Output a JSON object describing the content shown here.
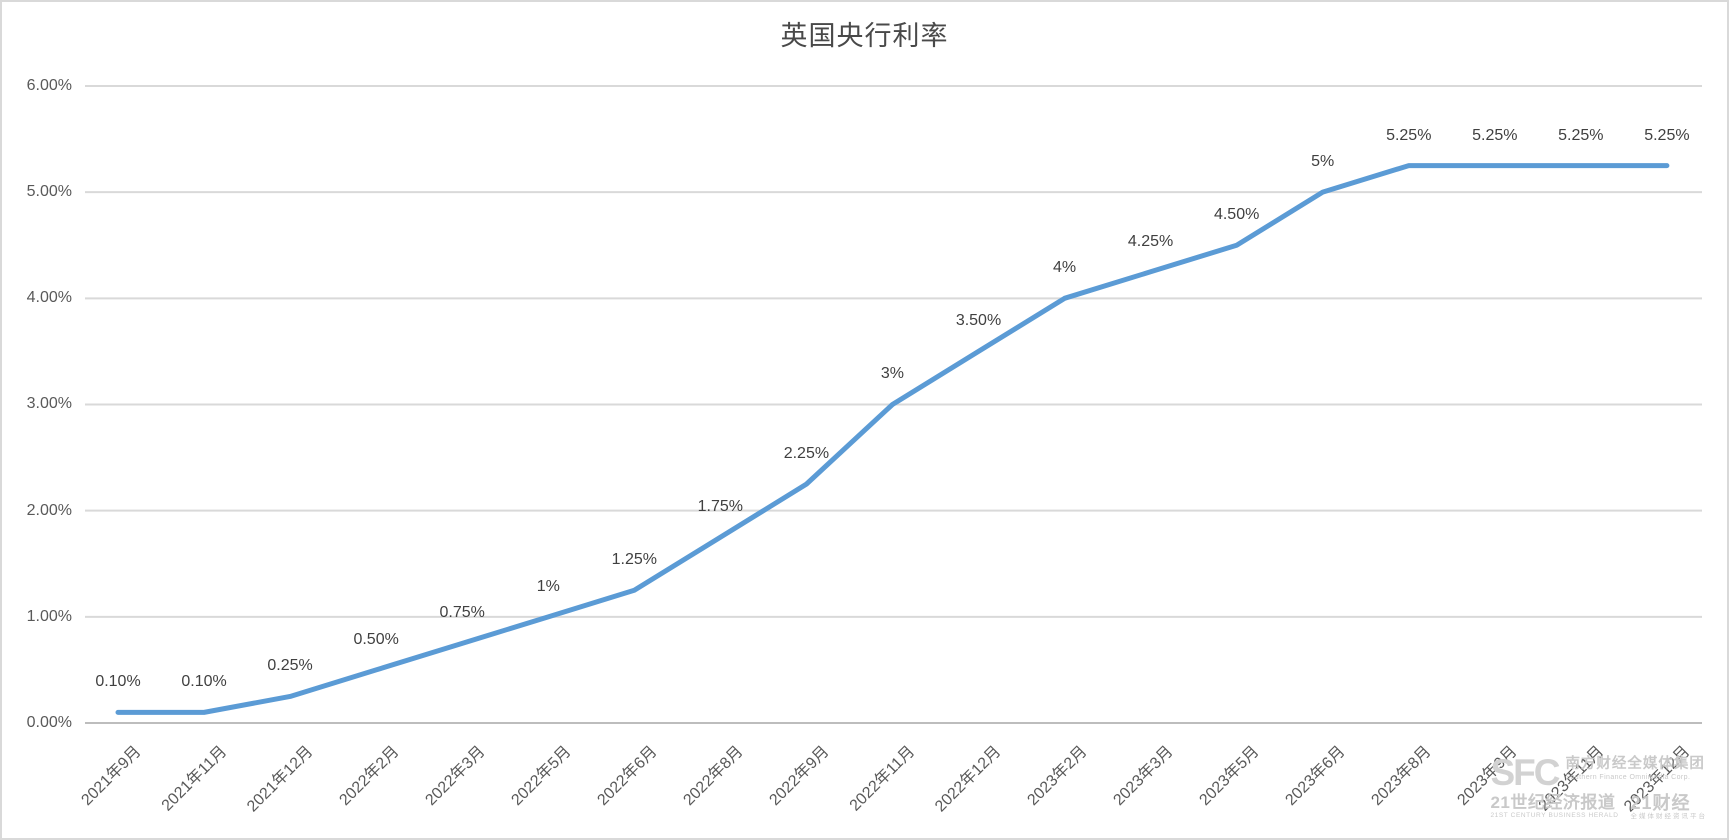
{
  "chart_data": {
    "type": "line",
    "title": "英国央行利率",
    "categories": [
      "2021年9月",
      "2021年11月",
      "2021年12月",
      "2022年2月",
      "2022年3月",
      "2022年5月",
      "2022年6月",
      "2022年8月",
      "2022年9月",
      "2022年11月",
      "2022年12月",
      "2023年2月",
      "2023年3月",
      "2023年5月",
      "2023年6月",
      "2023年8月",
      "2023年9月",
      "2023年11月",
      "2023年12月"
    ],
    "values": [
      0.1,
      0.1,
      0.25,
      0.5,
      0.75,
      1,
      1.25,
      1.75,
      2.25,
      3,
      3.5,
      4,
      4.25,
      4.5,
      5,
      5.25,
      5.25,
      5.25,
      5.25
    ],
    "data_labels": [
      "0.10%",
      "0.10%",
      "0.25%",
      "0.50%",
      "0.75%",
      "1%",
      "1.25%",
      "1.75%",
      "2.25%",
      "3%",
      "3.50%",
      "4%",
      "4.25%",
      "4.50%",
      "5%",
      "5.25%",
      "5.25%",
      "5.25%",
      "5.25%"
    ],
    "y_ticks": [
      "6.00%",
      "5.00%",
      "4.00%",
      "3.00%",
      "2.00%",
      "1.00%",
      "0.00%"
    ],
    "ylim": [
      0,
      6
    ],
    "grid": true,
    "legend": "none",
    "x_label_rotation": -45,
    "colors": {
      "line": "#5B9BD5",
      "gridline": "#D9D9D9",
      "zero_axis": "#BDBDBD",
      "data_label": "#404040",
      "tick_label": "#595959",
      "title": "#494949"
    }
  },
  "watermark": {
    "logo": "SFC",
    "org_cn": "南方财经全媒体集团",
    "org_en": "Southern Finance Omnimedia Corp.",
    "brand1_cn": "21世纪经济报道",
    "brand1_en": "21ST CENTURY BUSINESS HERALD",
    "brand2_cn": "21财经",
    "brand2_sub": "全媒体财经资讯平台"
  }
}
